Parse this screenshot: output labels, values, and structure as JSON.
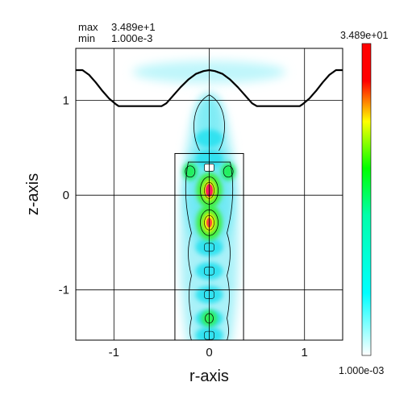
{
  "stats": {
    "max_label": "max",
    "max_value": "3.489e+1",
    "min_label": "min",
    "min_value": "1.000e-3"
  },
  "colorbar": {
    "top_label": "3.489e+01",
    "bottom_label": "1.000e-03",
    "stops": [
      "#ffffff",
      "#00ffff",
      "#00ff00",
      "#ffff00",
      "#ff0000",
      "#ff00ff"
    ]
  },
  "chart_data": {
    "type": "heatmap",
    "xlabel": "r-axis",
    "ylabel": "z-axis",
    "xlim": [
      -1.4,
      1.4
    ],
    "ylim": [
      -1.53,
      1.55
    ],
    "xticks": [
      -1,
      0,
      1
    ],
    "xtick_labels": [
      "-1",
      "0",
      "1"
    ],
    "yticks": [
      1,
      0,
      -1
    ],
    "ytick_labels": [
      "1",
      "0",
      "-1"
    ],
    "grid": true,
    "value_range": [
      0.001,
      34.89
    ],
    "boundary_profile": [
      [
        -1.4,
        1.32
      ],
      [
        -1.33,
        1.32
      ],
      [
        -1.26,
        1.27
      ],
      [
        -1.19,
        1.19
      ],
      [
        -1.12,
        1.1
      ],
      [
        -1.05,
        1.02
      ],
      [
        -0.98,
        0.96
      ],
      [
        -0.95,
        0.94
      ],
      [
        -0.5,
        0.94
      ],
      [
        -0.45,
        0.97
      ],
      [
        -0.38,
        1.05
      ],
      [
        -0.3,
        1.14
      ],
      [
        -0.22,
        1.22
      ],
      [
        -0.14,
        1.28
      ],
      [
        -0.06,
        1.31
      ],
      [
        0.0,
        1.32
      ],
      [
        0.06,
        1.31
      ],
      [
        0.14,
        1.28
      ],
      [
        0.22,
        1.22
      ],
      [
        0.3,
        1.14
      ],
      [
        0.38,
        1.05
      ],
      [
        0.45,
        0.97
      ],
      [
        0.5,
        0.94
      ],
      [
        0.95,
        0.94
      ],
      [
        0.98,
        0.96
      ],
      [
        1.05,
        1.02
      ],
      [
        1.12,
        1.1
      ],
      [
        1.19,
        1.19
      ],
      [
        1.26,
        1.27
      ],
      [
        1.33,
        1.32
      ],
      [
        1.4,
        1.32
      ]
    ],
    "inner_box": {
      "r": [
        -0.36,
        0.36
      ],
      "z": [
        -1.53,
        0.44
      ]
    },
    "intensity_peaks": [
      {
        "r": 0.0,
        "z": 0.05,
        "value": 34.89
      },
      {
        "r": 0.0,
        "z": -0.29,
        "value": 29.0
      },
      {
        "r": -0.2,
        "z": 0.25,
        "value": 14.0
      },
      {
        "r": 0.2,
        "z": 0.25,
        "value": 14.0
      },
      {
        "r": 0.0,
        "z": -1.3,
        "value": 16.0
      },
      {
        "r": 0.0,
        "z": 0.78,
        "value": 4.0
      }
    ]
  }
}
